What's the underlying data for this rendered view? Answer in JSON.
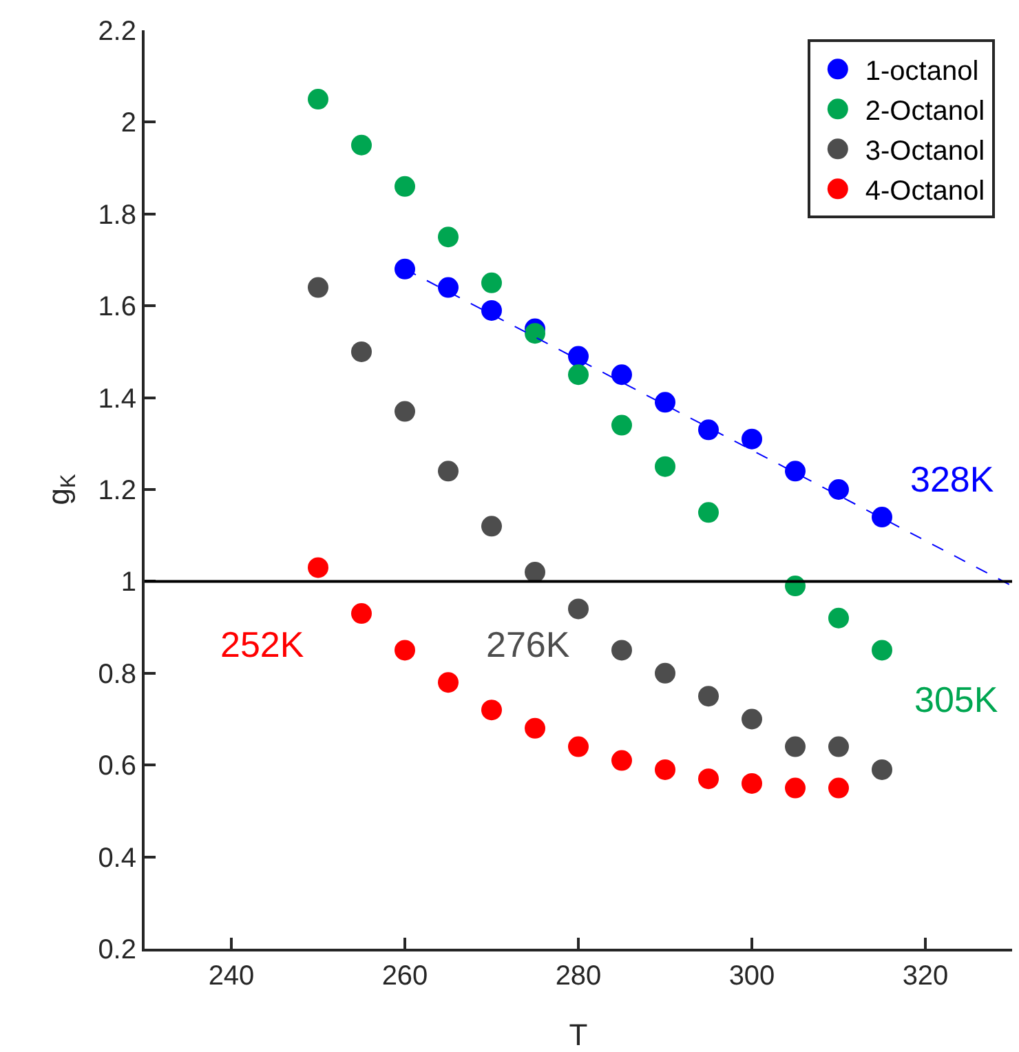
{
  "chart_data": {
    "type": "scatter",
    "xlabel": "T",
    "ylabel": "g$_{K}$",
    "xlim": [
      230,
      330
    ],
    "xticks": [
      240,
      260,
      280,
      300,
      320
    ],
    "ylim": [
      0.2,
      2.2
    ],
    "yticks": [
      0.2,
      0.4,
      0.6,
      0.8,
      1,
      1.2,
      1.4,
      1.6,
      1.8,
      2,
      2.2
    ],
    "grid": false,
    "legend": "top right",
    "marker": "circle",
    "series": [
      {
        "name": "1-octanol",
        "color": "#0000ff",
        "x": [
          260,
          265,
          270,
          275,
          280,
          285,
          290,
          295,
          300,
          305,
          310,
          315
        ],
        "values": [
          1.68,
          1.64,
          1.59,
          1.55,
          1.49,
          1.45,
          1.39,
          1.33,
          1.31,
          1.24,
          1.2,
          1.14
        ]
      },
      {
        "name": "2-Octanol",
        "color": "#00a651",
        "x": [
          250,
          255,
          260,
          265,
          270,
          275,
          280,
          285,
          290,
          295,
          305,
          310,
          315
        ],
        "values": [
          2.05,
          1.95,
          1.86,
          1.75,
          1.65,
          1.54,
          1.45,
          1.34,
          1.25,
          1.15,
          0.99,
          0.92,
          0.85
        ]
      },
      {
        "name": "3-Octanol",
        "color": "#4d4d4d",
        "x": [
          250,
          255,
          260,
          265,
          270,
          275,
          280,
          285,
          290,
          295,
          300,
          305,
          310,
          315
        ],
        "values": [
          1.64,
          1.5,
          1.37,
          1.24,
          1.12,
          1.02,
          0.94,
          0.85,
          0.8,
          0.75,
          0.7,
          0.64,
          0.64,
          0.59
        ]
      },
      {
        "name": "4-Octanol",
        "color": "#ff0000",
        "x": [
          250,
          255,
          260,
          265,
          270,
          275,
          280,
          285,
          290,
          295,
          300,
          305,
          310
        ],
        "values": [
          1.03,
          0.93,
          0.85,
          0.78,
          0.72,
          0.68,
          0.64,
          0.61,
          0.59,
          0.57,
          0.56,
          0.55,
          0.55
        ]
      },
      {
        "type": "line",
        "color": "#0000ff",
        "line_style": "dashed",
        "marker": "none",
        "x": [
          260,
          330
        ],
        "values": [
          1.68,
          0.99
        ]
      }
    ],
    "ref_lines": [
      {
        "axis": "y",
        "value": 1,
        "color": "#000000",
        "line_style": "solid"
      }
    ],
    "annotations": [
      {
        "text": "328K",
        "x": 328,
        "y": 1
      },
      {
        "text": "305K",
        "x": 315,
        "y": 0.85
      },
      {
        "text": "276K",
        "x": 276,
        "y": 1
      },
      {
        "text": "252K",
        "x": 252,
        "y": 1
      }
    ]
  }
}
